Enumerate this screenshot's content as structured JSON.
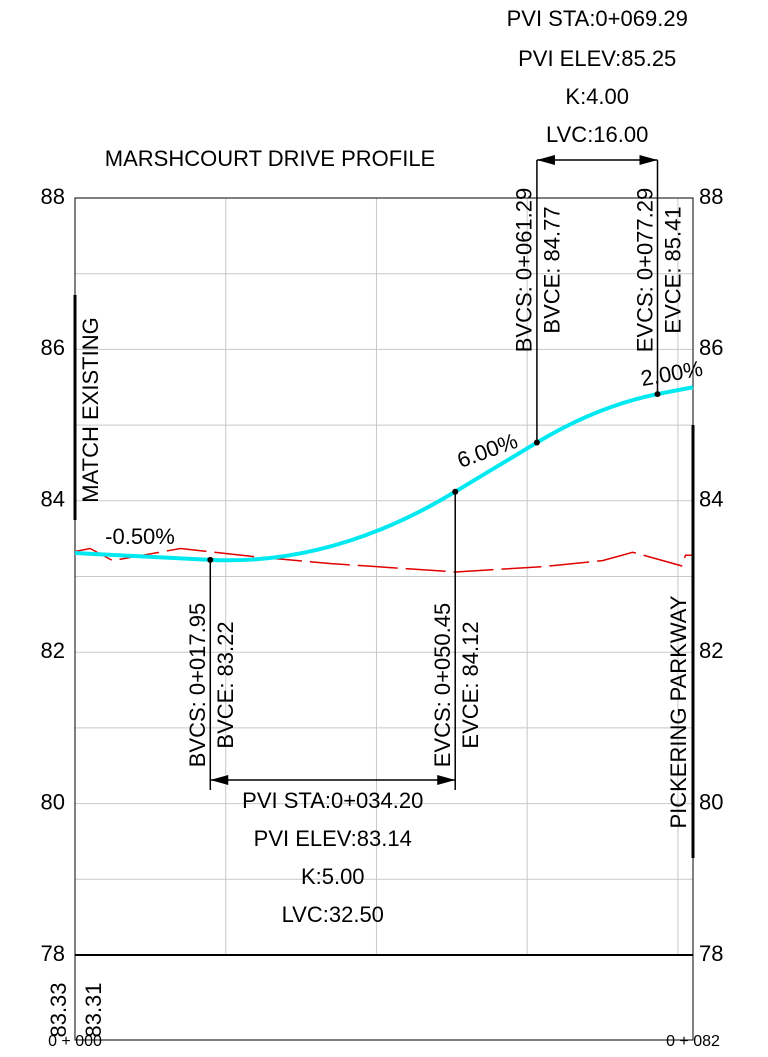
{
  "chart_data": {
    "type": "line",
    "title": "MARSHCOURT DRIVE PROFILE",
    "xlim": [
      0,
      82
    ],
    "ylim": [
      78,
      88
    ],
    "yticks": [
      78,
      80,
      82,
      84,
      86,
      88
    ],
    "yminor": [
      79,
      81,
      83,
      85,
      87
    ],
    "xgrid": [
      20,
      40,
      60,
      80
    ],
    "xticks": [
      {
        "value": 0,
        "label": "0 + 000"
      },
      {
        "value": 82,
        "label": "0 + 082"
      }
    ],
    "grid": true,
    "series": [
      {
        "color": "#00e8f0",
        "x": [
          0,
          17.95,
          50.45,
          61.29,
          77.29,
          82
        ],
        "values": [
          83.31,
          83.22,
          84.12,
          84.77,
          85.41,
          85.5
        ]
      },
      {
        "color": "#e00000",
        "dashed": true,
        "x": [
          0,
          2,
          5,
          14,
          24,
          34,
          50.5,
          62,
          70,
          74,
          78,
          80.5,
          81,
          82
        ],
        "values": [
          83.33,
          83.37,
          83.21,
          83.37,
          83.26,
          83.17,
          83.06,
          83.13,
          83.21,
          83.32,
          83.21,
          83.14,
          83.28,
          83.28
        ]
      }
    ],
    "curves": [
      {
        "pvi_sta": 34.2,
        "pvi_elev": 83.14,
        "bvc_sta": 17.95,
        "bvc_elev": 83.22,
        "evc_sta": 50.45,
        "evc_elev": 84.12,
        "pvi_sta_label": "PVI STA:0+034.20",
        "pvi_elev_label": "PVI ELEV:83.14",
        "k_label": "K:5.00",
        "lvc_label": "LVC:32.50",
        "bvcs_label": "BVCS: 0+017.95",
        "bvce_label": "BVCE: 83.22",
        "evcs_label": "EVCS: 0+050.45",
        "evce_label": "EVCE: 84.12"
      },
      {
        "pvi_sta": 69.29,
        "pvi_elev": 85.25,
        "bvc_sta": 61.29,
        "bvc_elev": 84.77,
        "evc_sta": 77.29,
        "evc_elev": 85.41,
        "pvi_sta_label": "PVI STA:0+069.29",
        "pvi_elev_label": "PVI ELEV:85.25",
        "k_label": "K:4.00",
        "lvc_label": "LVC:16.00",
        "bvcs_label": "BVCS: 0+061.29",
        "bvce_label": "BVCE: 84.77",
        "evcs_label": "EVCS: 0+077.29",
        "evce_label": "EVCE: 85.41"
      }
    ],
    "grades": [
      "-0.50%",
      "6.00%",
      "2.00%"
    ],
    "annotations": [
      "MATCH EXISTING",
      "PICKERING PARKWAY"
    ],
    "band_labels": [
      "83.33",
      "83.31"
    ]
  }
}
